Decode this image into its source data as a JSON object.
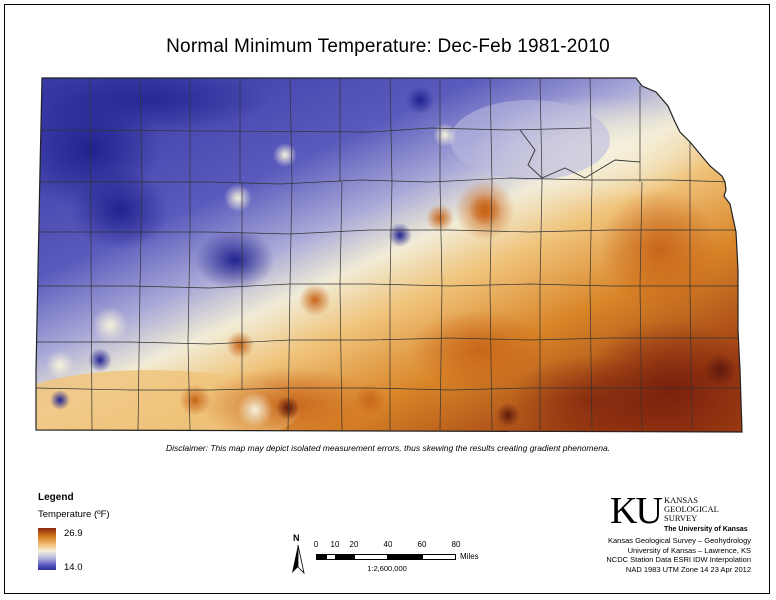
{
  "title": "Normal Minimum Temperature:  Dec-Feb 1981-2010",
  "disclaimer": "Disclaimer: This map may depict isolated measurement errors, thus skewing the results creating gradient phenomena.",
  "legend": {
    "title": "Legend",
    "field": "Temperature (ºF)",
    "max_label": "26.9",
    "min_label": "14.0",
    "max_value": 26.9,
    "min_value": 14.0,
    "ramp_colors": [
      "#8b2a10",
      "#d27a1c",
      "#f2c27a",
      "#f3efd8",
      "#b5b5e0",
      "#5a5ac2",
      "#2d2d9c"
    ]
  },
  "north_arrow": {
    "label": "N"
  },
  "scale_bar": {
    "ticks": [
      "0",
      "10",
      "20",
      "40",
      "60",
      "80"
    ],
    "units": "Miles",
    "ratio": "1:2,600,000"
  },
  "logo": {
    "mark": "KU",
    "name_line1": "KANSAS",
    "name_line2": "GEOLOGICAL",
    "name_line3": "SURVEY",
    "university": "The University of Kansas"
  },
  "credits": [
    "Kansas Geological Survey – Geohydrology",
    "University of Kansas – Lawrence, KS",
    "NCDC Station Data  ESRI IDW Interpolation",
    "NAD 1983 UTM Zone 14  23 Apr 2012"
  ],
  "map": {
    "state": "Kansas",
    "colors": {
      "cold": "#2d2d9c",
      "cool": "#6a6ac8",
      "mild": "#c9c9e6",
      "neutral": "#f3efd8",
      "warm": "#f0b865",
      "warmer": "#d97f24",
      "hot": "#8b2a10",
      "county_line": "#333333"
    }
  }
}
